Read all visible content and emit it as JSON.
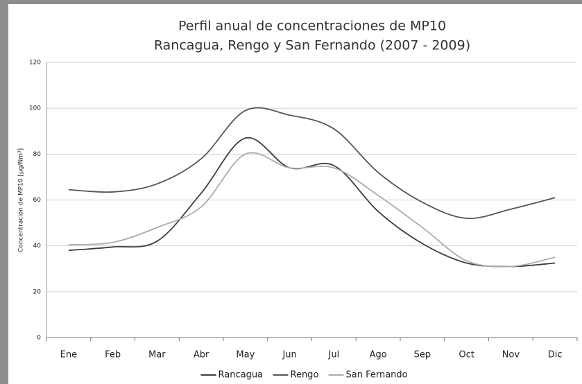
{
  "chart_data": {
    "type": "line",
    "title": "Perfil anual de concentraciones de MP10",
    "subtitle": "Rancagua, Rengo y San Fernando (2007 - 2009)",
    "y_label": "Concentración de MP10 [µg/Nm³]",
    "categories": [
      "Ene",
      "Feb",
      "Mar",
      "Abr",
      "May",
      "Jun",
      "Jul",
      "Ago",
      "Sep",
      "Oct",
      "Nov",
      "Dic"
    ],
    "series": [
      {
        "name": "Rancagua",
        "color": "#3c3c3c",
        "values": [
          38,
          39.5,
          42,
          63,
          87,
          74,
          75,
          55,
          41,
          32.5,
          31,
          32.5
        ]
      },
      {
        "name": "Rengo",
        "color": "#555555",
        "values": [
          64.5,
          63.5,
          67,
          78,
          99,
          97,
          91,
          72,
          59,
          52,
          56,
          61
        ]
      },
      {
        "name": "San Fernando",
        "color": "#ababab",
        "values": [
          40.5,
          41.5,
          48,
          57,
          80,
          74,
          74,
          62,
          48,
          33.5,
          31,
          35
        ]
      }
    ],
    "ylim": [
      0,
      120
    ],
    "yticks": [
      0,
      20,
      40,
      60,
      80,
      100,
      120
    ],
    "grid": true,
    "legend": "bottom"
  }
}
